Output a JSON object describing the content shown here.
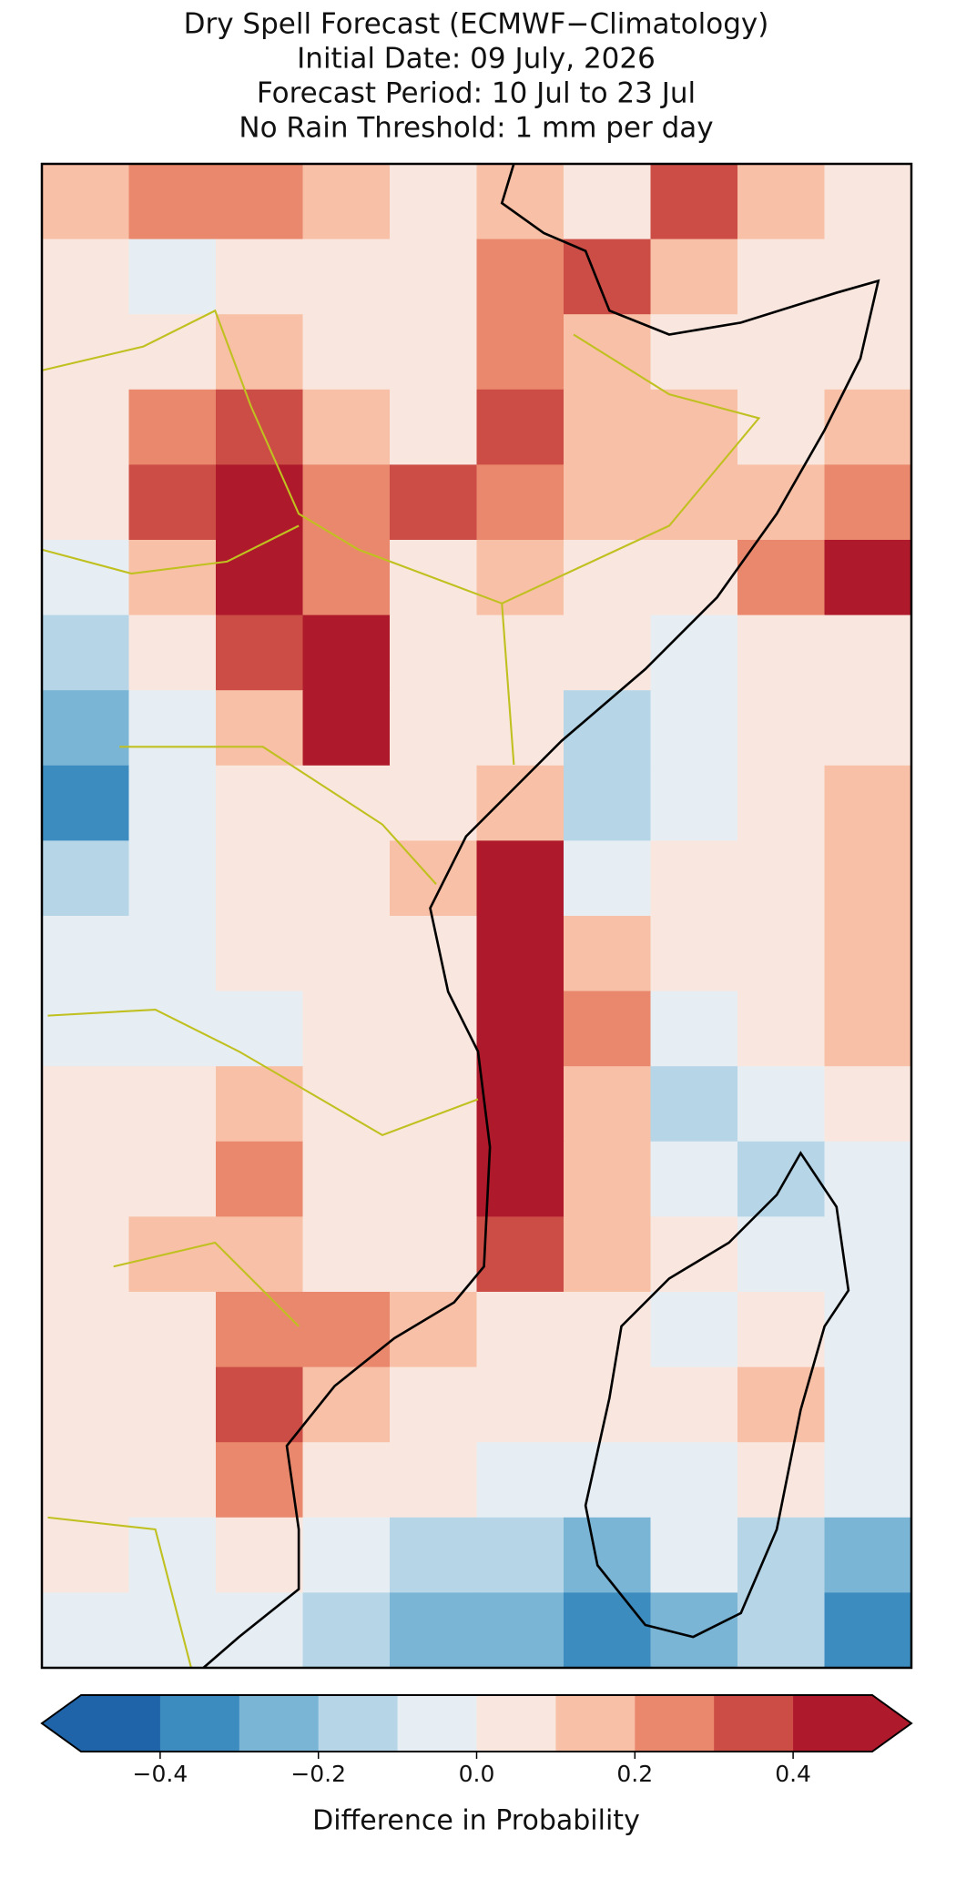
{
  "chart_data": {
    "type": "heatmap",
    "title": [
      "Dry Spell Forecast (ECMWF−Climatology)",
      "Initial Date: 09 July, 2026",
      "Forecast Period: 10 Jul to 23 Jul",
      "No Rain Threshold: 1 mm per day"
    ],
    "values": [
      [
        0.15,
        0.25,
        0.25,
        0.15,
        0.05,
        0.15,
        0.05,
        0.35,
        0.15,
        0.05
      ],
      [
        0.05,
        -0.05,
        0.05,
        0.05,
        0.05,
        0.25,
        0.35,
        0.15,
        0.05,
        0.05
      ],
      [
        0.05,
        0.05,
        0.15,
        0.05,
        0.05,
        0.25,
        0.15,
        0.05,
        0.05,
        0.05
      ],
      [
        0.05,
        0.25,
        0.35,
        0.15,
        0.05,
        0.35,
        0.15,
        0.15,
        0.05,
        0.15
      ],
      [
        0.05,
        0.35,
        0.45,
        0.25,
        0.35,
        0.25,
        0.15,
        0.15,
        0.15,
        0.25
      ],
      [
        -0.05,
        0.15,
        0.45,
        0.25,
        0.05,
        0.15,
        0.05,
        0.05,
        0.25,
        0.45
      ],
      [
        -0.15,
        0.05,
        0.35,
        0.45,
        0.05,
        0.05,
        0.05,
        -0.05,
        0.05,
        0.05
      ],
      [
        -0.25,
        -0.05,
        0.15,
        0.45,
        0.05,
        0.05,
        -0.15,
        -0.05,
        0.05,
        0.05
      ],
      [
        -0.35,
        -0.05,
        0.05,
        0.05,
        0.05,
        0.15,
        -0.15,
        -0.05,
        0.05,
        0.15
      ],
      [
        -0.15,
        -0.05,
        0.05,
        0.05,
        0.15,
        0.45,
        -0.05,
        0.05,
        0.05,
        0.15
      ],
      [
        -0.05,
        -0.05,
        0.05,
        0.05,
        0.05,
        0.45,
        0.15,
        0.05,
        0.05,
        0.15
      ],
      [
        -0.05,
        -0.05,
        -0.05,
        0.05,
        0.05,
        0.45,
        0.25,
        -0.05,
        0.05,
        0.15
      ],
      [
        0.05,
        0.05,
        0.15,
        0.05,
        0.05,
        0.45,
        0.15,
        -0.15,
        -0.05,
        0.05
      ],
      [
        0.05,
        0.05,
        0.25,
        0.05,
        0.05,
        0.45,
        0.15,
        -0.05,
        -0.15,
        -0.05
      ],
      [
        0.05,
        0.15,
        0.15,
        0.05,
        0.05,
        0.35,
        0.15,
        0.05,
        -0.05,
        -0.05
      ],
      [
        0.05,
        0.05,
        0.25,
        0.25,
        0.15,
        0.05,
        0.05,
        -0.05,
        0.05,
        -0.05
      ],
      [
        0.05,
        0.05,
        0.35,
        0.15,
        0.05,
        0.05,
        0.05,
        0.05,
        0.15,
        -0.05
      ],
      [
        0.05,
        0.05,
        0.25,
        0.05,
        0.05,
        -0.05,
        -0.05,
        -0.05,
        0.05,
        -0.05
      ],
      [
        0.05,
        -0.05,
        0.05,
        -0.05,
        -0.15,
        -0.15,
        -0.25,
        -0.05,
        -0.15,
        -0.25
      ],
      [
        -0.05,
        -0.05,
        -0.05,
        -0.15,
        -0.25,
        -0.25,
        -0.35,
        -0.25,
        -0.15,
        -0.35
      ]
    ],
    "levels": [
      -0.5,
      -0.4,
      -0.3,
      -0.2,
      -0.1,
      0,
      0.1,
      0.2,
      0.3,
      0.4,
      0.5
    ],
    "colors": [
      "#1f63a8",
      "#3d8cc0",
      "#7ab5d6",
      "#b6d6e8",
      "#e6eef3",
      "#f9e7df",
      "#f8c0a6",
      "#e9886c",
      "#cc4d46",
      "#ae1a2b"
    ],
    "colorbar_ticks": [
      {
        "value": -0.4,
        "label": "−0.4"
      },
      {
        "value": -0.2,
        "label": "−0.2"
      },
      {
        "value": 0,
        "label": "0.0"
      },
      0.2,
      0.4
    ],
    "colorbar_label": "Difference in Probability"
  }
}
